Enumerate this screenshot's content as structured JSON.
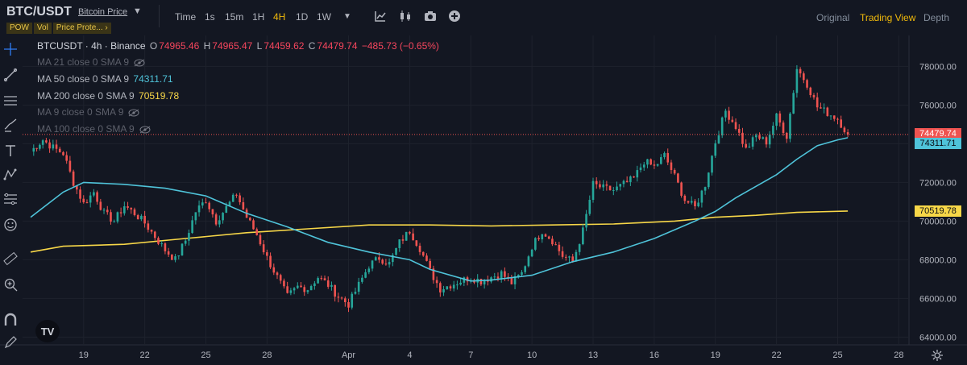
{
  "header": {
    "pair": "BTC/USDT",
    "price_type": "Bitcoin Price",
    "tags": [
      "POW",
      "Vol",
      "Price Prote... ›"
    ],
    "timeframes": [
      "Time",
      "1s",
      "15m",
      "1H",
      "4H",
      "1D",
      "1W"
    ],
    "active_timeframe": "4H",
    "views": [
      "Original",
      "Trading View",
      "Depth"
    ],
    "active_view": "Trading View"
  },
  "legend": {
    "symbol": "BTCUSDT · 4h · Binance",
    "o_label": "O",
    "o": "74965.46",
    "h_label": "H",
    "h": "74965.47",
    "l_label": "L",
    "l": "74459.62",
    "c_label": "C",
    "c": "74479.74",
    "change": "−485.73 (−0.65%)",
    "ma21": "MA 21 close 0 SMA 9",
    "ma50": "MA 50 close 0 SMA 9",
    "ma50_value": "74311.71",
    "ma200": "MA 200 close 0 SMA 9",
    "ma200_value": "70519.78",
    "ma9": "MA 9 close 0 SMA 9",
    "ma100": "MA 100 close 0 SMA 9"
  },
  "price_tags": {
    "last": "74479.74",
    "ma50": "74311.71",
    "ma200": "70519.78"
  },
  "colors": {
    "up": "#26a69a",
    "down": "#ef5350",
    "ma50": "#4fc3d9",
    "ma200": "#f7d748",
    "accent": "#f0b90b",
    "background": "#131722"
  },
  "icons": [
    "crosshair-icon",
    "trendline-icon",
    "fib-icon",
    "brush-icon",
    "text-icon",
    "pattern-icon",
    "projection-icon",
    "emoji-icon",
    "ruler-icon",
    "zoom-icon",
    "magnet-icon",
    "lock-icon",
    "trash-icon",
    "indicator-icon",
    "candles-icon",
    "camera-icon",
    "add-icon",
    "settings-icon"
  ],
  "chart_data": {
    "type": "candlestick",
    "symbol": "BTCUSDT",
    "interval": "4h",
    "exchange": "Binance",
    "y_ticks": [
      64000,
      66000,
      68000,
      70000,
      72000,
      74000,
      76000,
      78000
    ],
    "y_tick_labels": [
      "64000.00",
      "66000.00",
      "68000.00",
      "70000.00",
      "72000.00",
      "74000.00",
      "76000.00",
      "78000.00"
    ],
    "ylim": [
      63600,
      79600
    ],
    "x_tick_labels": [
      "19",
      "22",
      "25",
      "28",
      "Apr",
      "4",
      "7",
      "10",
      "13",
      "16",
      "19",
      "22",
      "25",
      "28"
    ],
    "x_ticks_day": [
      1,
      4,
      7,
      10,
      14,
      17,
      20,
      23,
      26,
      29,
      32,
      35,
      38,
      41
    ],
    "x_start_day": -1.6,
    "x_end_day": 41.5,
    "close_path": [
      [
        -1.6,
        73600
      ],
      [
        -1.0,
        74200
      ],
      [
        -0.5,
        73800
      ],
      [
        0,
        73500
      ],
      [
        0.5,
        72000
      ],
      [
        1.0,
        70900
      ],
      [
        1.5,
        71500
      ],
      [
        2.0,
        70400
      ],
      [
        2.5,
        70000
      ],
      [
        3.0,
        70800
      ],
      [
        3.5,
        70400
      ],
      [
        4.0,
        69900
      ],
      [
        4.5,
        69200
      ],
      [
        5.0,
        68500
      ],
      [
        5.5,
        68000
      ],
      [
        6.0,
        69000
      ],
      [
        6.5,
        70500
      ],
      [
        7.0,
        71100
      ],
      [
        7.5,
        70000
      ],
      [
        8.0,
        70700
      ],
      [
        8.5,
        71400
      ],
      [
        9.0,
        70200
      ],
      [
        9.5,
        69300
      ],
      [
        10.0,
        68100
      ],
      [
        10.5,
        67100
      ],
      [
        11.0,
        66100
      ],
      [
        11.5,
        66600
      ],
      [
        12.0,
        66500
      ],
      [
        12.5,
        67100
      ],
      [
        13.0,
        66700
      ],
      [
        13.5,
        66100
      ],
      [
        14.0,
        65700
      ],
      [
        14.5,
        66700
      ],
      [
        15.0,
        67700
      ],
      [
        15.5,
        68100
      ],
      [
        16.0,
        67800
      ],
      [
        16.5,
        68900
      ],
      [
        17.0,
        69500
      ],
      [
        17.5,
        68600
      ],
      [
        18.0,
        67400
      ],
      [
        18.5,
        66500
      ],
      [
        19.0,
        66700
      ],
      [
        19.5,
        66900
      ],
      [
        20.0,
        67100
      ],
      [
        20.5,
        66900
      ],
      [
        21.0,
        67100
      ],
      [
        21.5,
        67300
      ],
      [
        22.0,
        66800
      ],
      [
        22.5,
        67300
      ],
      [
        23.0,
        68700
      ],
      [
        23.5,
        69500
      ],
      [
        24.0,
        69000
      ],
      [
        24.5,
        68200
      ],
      [
        25.0,
        67900
      ],
      [
        25.5,
        69500
      ],
      [
        26.0,
        71900
      ],
      [
        26.5,
        71700
      ],
      [
        27.0,
        71600
      ],
      [
        27.5,
        71900
      ],
      [
        28.0,
        72200
      ],
      [
        28.5,
        73100
      ],
      [
        29.0,
        72800
      ],
      [
        29.5,
        73400
      ],
      [
        30.0,
        72300
      ],
      [
        30.5,
        71100
      ],
      [
        31.0,
        70700
      ],
      [
        31.5,
        71900
      ],
      [
        32.0,
        74100
      ],
      [
        32.5,
        75700
      ],
      [
        33.0,
        74900
      ],
      [
        33.5,
        73700
      ],
      [
        34.0,
        74400
      ],
      [
        34.5,
        74100
      ],
      [
        35.0,
        75400
      ],
      [
        35.5,
        74400
      ],
      [
        36.0,
        77900
      ],
      [
        36.5,
        77100
      ],
      [
        37.0,
        75900
      ],
      [
        37.5,
        75600
      ],
      [
        38.0,
        75300
      ],
      [
        38.5,
        74480
      ]
    ],
    "ma50_path": [
      [
        -1.6,
        70200
      ],
      [
        0,
        71500
      ],
      [
        1,
        72000
      ],
      [
        3,
        71900
      ],
      [
        5,
        71700
      ],
      [
        7,
        71300
      ],
      [
        9,
        70400
      ],
      [
        11,
        69700
      ],
      [
        13,
        68900
      ],
      [
        15,
        68400
      ],
      [
        17,
        68000
      ],
      [
        18,
        67500
      ],
      [
        20,
        66900
      ],
      [
        21,
        66950
      ],
      [
        23,
        67200
      ],
      [
        25,
        67900
      ],
      [
        27,
        68400
      ],
      [
        29,
        69100
      ],
      [
        31,
        70000
      ],
      [
        32,
        70500
      ],
      [
        33,
        71200
      ],
      [
        34,
        71800
      ],
      [
        35,
        72400
      ],
      [
        36,
        73200
      ],
      [
        37,
        73900
      ],
      [
        38,
        74200
      ],
      [
        38.5,
        74311.71
      ]
    ],
    "ma200_path": [
      [
        -1.6,
        68400
      ],
      [
        0,
        68700
      ],
      [
        3,
        68800
      ],
      [
        6,
        69100
      ],
      [
        9,
        69400
      ],
      [
        12,
        69600
      ],
      [
        15,
        69800
      ],
      [
        18,
        69800
      ],
      [
        21,
        69750
      ],
      [
        24,
        69800
      ],
      [
        27,
        69850
      ],
      [
        30,
        70000
      ],
      [
        32,
        70200
      ],
      [
        34,
        70300
      ],
      [
        36,
        70450
      ],
      [
        38.5,
        70519.78
      ]
    ],
    "last_price": 74479.74,
    "ma50_last": 74311.71,
    "ma200_last": 70519.78
  }
}
